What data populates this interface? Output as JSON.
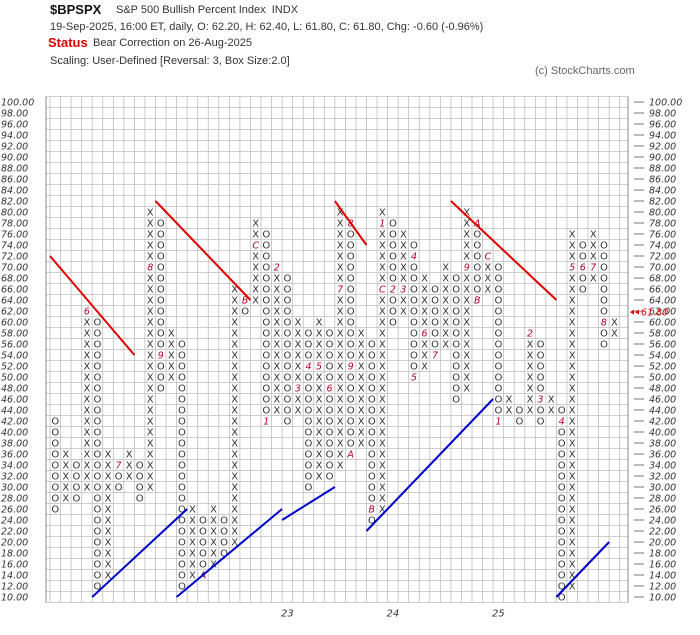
{
  "header": {
    "symbol": "$BPSPX",
    "name": "S&P 500 Bullish Percent Index",
    "exchange": "INDX",
    "date_line": "19-Sep-2025, 16:00 ET, daily, O: 62.20, H: 62.40, L: 61.80, C: 61.80, Chg: -0.60 (-0.96%)",
    "status_label": "Status",
    "status_text": "Bear Correction on 26-Aug-2025",
    "scaling": "Scaling: User-Defined [Reversal: 3, Box Size:2.0]",
    "copyright": "(c) StockCharts.com"
  },
  "chart_data": {
    "type": "point-and-figure",
    "box_size": 2.0,
    "reversal": 3,
    "ylim": [
      10,
      100
    ],
    "y_ticks": [
      "100.00",
      "98.00",
      "96.00",
      "94.00",
      "92.00",
      "90.00",
      "88.00",
      "86.00",
      "84.00",
      "82.00",
      "80.00",
      "78.00",
      "76.00",
      "74.00",
      "72.00",
      "70.00",
      "68.00",
      "66.00",
      "64.00",
      "62.00",
      "60.00",
      "58.00",
      "56.00",
      "54.00",
      "52.00",
      "50.00",
      "48.00",
      "46.00",
      "44.00",
      "42.00",
      "40.00",
      "38.00",
      "36.00",
      "34.00",
      "32.00",
      "30.00",
      "28.00",
      "26.00",
      "24.00",
      "22.00",
      "20.00",
      "18.00",
      "16.00",
      "14.00",
      "12.00",
      "10.00"
    ],
    "x_labels": [
      {
        "label": "23",
        "column": 22
      },
      {
        "label": "24",
        "column": 32
      },
      {
        "label": "25",
        "column": 42
      }
    ],
    "last_price_label": "61.80",
    "columns": [
      {
        "t": "O",
        "from": 42,
        "to": 26
      },
      {
        "t": "X",
        "from": 28,
        "to": 36
      },
      {
        "t": "O",
        "from": 34,
        "to": 28
      },
      {
        "t": "X",
        "from": 30,
        "to": 62,
        "marks": [
          {
            "at": 62,
            "text": "6"
          }
        ]
      },
      {
        "t": "O",
        "from": 60,
        "to": 12
      },
      {
        "t": "X",
        "from": 14,
        "to": 36
      },
      {
        "t": "O",
        "from": 34,
        "to": 30,
        "marks": [
          {
            "at": 34,
            "text": "7"
          }
        ]
      },
      {
        "t": "X",
        "from": 32,
        "to": 36
      },
      {
        "t": "O",
        "from": 34,
        "to": 28
      },
      {
        "t": "X",
        "from": 30,
        "to": 80,
        "marks": [
          {
            "at": 70,
            "text": "8"
          }
        ]
      },
      {
        "t": "O",
        "from": 78,
        "to": 48,
        "marks": [
          {
            "at": 54,
            "text": "9"
          }
        ]
      },
      {
        "t": "X",
        "from": 50,
        "to": 58
      },
      {
        "t": "O",
        "from": 56,
        "to": 12
      },
      {
        "t": "X",
        "from": 14,
        "to": 26
      },
      {
        "t": "O",
        "from": 24,
        "to": 14,
        "marks": [
          {
            "at": 14,
            "text": "A"
          }
        ]
      },
      {
        "t": "X",
        "from": 16,
        "to": 26
      },
      {
        "t": "O",
        "from": 24,
        "to": 18
      },
      {
        "t": "X",
        "from": 20,
        "to": 66
      },
      {
        "t": "O",
        "from": 64,
        "to": 62,
        "marks": [
          {
            "at": 64,
            "text": "B"
          }
        ]
      },
      {
        "t": "X",
        "from": 64,
        "to": 78,
        "marks": [
          {
            "at": 74,
            "text": "C"
          }
        ]
      },
      {
        "t": "O",
        "from": 76,
        "to": 42,
        "marks": [
          {
            "at": 42,
            "text": "1"
          }
        ]
      },
      {
        "t": "X",
        "from": 44,
        "to": 70,
        "marks": [
          {
            "at": 70,
            "text": "2"
          }
        ]
      },
      {
        "t": "O",
        "from": 68,
        "to": 42
      },
      {
        "t": "X",
        "from": 44,
        "to": 60,
        "marks": [
          {
            "at": 48,
            "text": "3"
          }
        ]
      },
      {
        "t": "O",
        "from": 58,
        "to": 30,
        "marks": [
          {
            "at": 52,
            "text": "4"
          }
        ]
      },
      {
        "t": "X",
        "from": 32,
        "to": 60,
        "marks": [
          {
            "at": 52,
            "text": "5"
          }
        ]
      },
      {
        "t": "O",
        "from": 58,
        "to": 32,
        "marks": [
          {
            "at": 48,
            "text": "6"
          }
        ]
      },
      {
        "t": "X",
        "from": 34,
        "to": 80,
        "marks": [
          {
            "at": 66,
            "text": "7"
          }
        ]
      },
      {
        "t": "O",
        "from": 78,
        "to": 36,
        "marks": [
          {
            "at": 78,
            "text": "8"
          },
          {
            "at": 52,
            "text": "9"
          },
          {
            "at": 36,
            "text": "A"
          }
        ]
      },
      {
        "t": "X",
        "from": 38,
        "to": 58
      },
      {
        "t": "O",
        "from": 56,
        "to": 24,
        "marks": [
          {
            "at": 26,
            "text": "B"
          }
        ]
      },
      {
        "t": "X",
        "from": 26,
        "to": 80,
        "marks": [
          {
            "at": 78,
            "text": "1"
          },
          {
            "at": 66,
            "text": "C"
          }
        ]
      },
      {
        "t": "O",
        "from": 78,
        "to": 60,
        "marks": [
          {
            "at": 66,
            "text": "2"
          }
        ]
      },
      {
        "t": "X",
        "from": 62,
        "to": 76,
        "marks": [
          {
            "at": 66,
            "text": "3"
          }
        ]
      },
      {
        "t": "O",
        "from": 74,
        "to": 50,
        "marks": [
          {
            "at": 72,
            "text": "4"
          },
          {
            "at": 50,
            "text": "5"
          }
        ]
      },
      {
        "t": "X",
        "from": 52,
        "to": 68,
        "marks": [
          {
            "at": 58,
            "text": "6"
          }
        ]
      },
      {
        "t": "O",
        "from": 66,
        "to": 54,
        "marks": [
          {
            "at": 54,
            "text": "7"
          }
        ]
      },
      {
        "t": "X",
        "from": 56,
        "to": 70
      },
      {
        "t": "O",
        "from": 68,
        "to": 46
      },
      {
        "t": "X",
        "from": 48,
        "to": 80,
        "marks": [
          {
            "at": 70,
            "text": "9"
          }
        ]
      },
      {
        "t": "O",
        "from": 78,
        "to": 64,
        "marks": [
          {
            "at": 78,
            "text": "A"
          },
          {
            "at": 64,
            "text": "B"
          }
        ]
      },
      {
        "t": "X",
        "from": 66,
        "to": 72,
        "marks": [
          {
            "at": 72,
            "text": "C"
          }
        ]
      },
      {
        "t": "O",
        "from": 70,
        "to": 42,
        "marks": [
          {
            "at": 42,
            "text": "1"
          }
        ]
      },
      {
        "t": "X",
        "from": 44,
        "to": 46
      },
      {
        "t": "O",
        "from": 44,
        "to": 42
      },
      {
        "t": "X",
        "from": 44,
        "to": 58,
        "marks": [
          {
            "at": 58,
            "text": "2"
          }
        ]
      },
      {
        "t": "O",
        "from": 56,
        "to": 42,
        "marks": [
          {
            "at": 46,
            "text": "3"
          }
        ]
      },
      {
        "t": "X",
        "from": 44,
        "to": 46
      },
      {
        "t": "O",
        "from": 44,
        "to": 10,
        "marks": [
          {
            "at": 42,
            "text": "4"
          }
        ]
      },
      {
        "t": "X",
        "from": 12,
        "to": 76,
        "marks": [
          {
            "at": 70,
            "text": "5"
          }
        ]
      },
      {
        "t": "O",
        "from": 74,
        "to": 66,
        "marks": [
          {
            "at": 70,
            "text": "6"
          }
        ]
      },
      {
        "t": "X",
        "from": 68,
        "to": 76,
        "marks": [
          {
            "at": 70,
            "text": "7"
          }
        ]
      },
      {
        "t": "O",
        "from": 74,
        "to": 56,
        "marks": [
          {
            "at": 60,
            "text": "8"
          }
        ]
      },
      {
        "t": "X",
        "from": 58,
        "to": 60
      }
    ],
    "trendlines": [
      {
        "kind": "resistance",
        "from": [
          0,
          72
        ],
        "to": [
          8,
          54
        ]
      },
      {
        "kind": "resistance",
        "from": [
          10,
          82
        ],
        "to": [
          19,
          64
        ]
      },
      {
        "kind": "resistance",
        "from": [
          27,
          82
        ],
        "to": [
          30,
          74
        ]
      },
      {
        "kind": "resistance",
        "from": [
          38,
          82
        ],
        "to": [
          48,
          64
        ]
      },
      {
        "kind": "support",
        "from": [
          4,
          10
        ],
        "to": [
          13,
          26
        ]
      },
      {
        "kind": "support",
        "from": [
          12,
          10
        ],
        "to": [
          22,
          26
        ]
      },
      {
        "kind": "support",
        "from": [
          22,
          24
        ],
        "to": [
          27,
          30
        ]
      },
      {
        "kind": "support",
        "from": [
          30,
          22
        ],
        "to": [
          42,
          46
        ]
      },
      {
        "kind": "support",
        "from": [
          48,
          10
        ],
        "to": [
          53,
          20
        ]
      }
    ],
    "colors": {
      "grid": "#bdbdbd",
      "symbol": "#333333",
      "month_mark": "#b3002b",
      "resistance": "#e00000",
      "support": "#0000cc",
      "last_price": "#e00000",
      "tick_label": "#333333"
    }
  }
}
